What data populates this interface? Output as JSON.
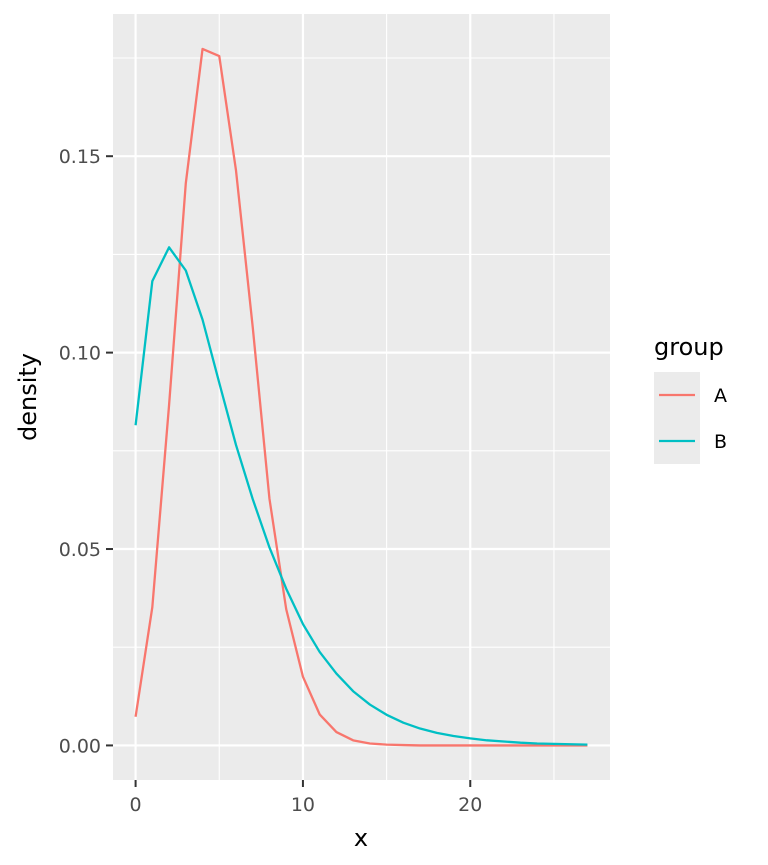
{
  "chart_data": {
    "type": "line",
    "title": "",
    "xlabel": "x",
    "ylabel": "density",
    "xlim": [
      -1.35,
      28.35
    ],
    "ylim": [
      -0.0088,
      0.1862
    ],
    "x_ticks": [
      0,
      10,
      20
    ],
    "x_tick_labels": [
      "0",
      "10",
      "20"
    ],
    "y_ticks": [
      0.0,
      0.05,
      0.1,
      0.15
    ],
    "y_tick_labels": [
      "0.00",
      "0.05",
      "0.10",
      "0.15"
    ],
    "grid": true,
    "legend": {
      "title": "group",
      "position": "right"
    },
    "series": [
      {
        "name": "A",
        "color": "#F8766D",
        "x": [
          0,
          1,
          2,
          3,
          4,
          5,
          6,
          7,
          8,
          9,
          10,
          11,
          12,
          13,
          14,
          15,
          16,
          17,
          18,
          19,
          20,
          21,
          22,
          23,
          24,
          25,
          26,
          27
        ],
        "y": [
          0.0073,
          0.0352,
          0.0866,
          0.1431,
          0.1773,
          0.1755,
          0.1464,
          0.1065,
          0.0628,
          0.0347,
          0.0175,
          0.0079,
          0.0034,
          0.0013,
          0.0005,
          0.0002,
          0.0001,
          0.0,
          0.0,
          0.0,
          0.0,
          0.0,
          0.0,
          0.0,
          0.0,
          0.0,
          0.0,
          0.0
        ]
      },
      {
        "name": "B",
        "color": "#00BFC4",
        "x": [
          0,
          1,
          2,
          3,
          4,
          5,
          6,
          7,
          8,
          9,
          10,
          11,
          12,
          13,
          14,
          15,
          16,
          17,
          18,
          19,
          20,
          21,
          22,
          23,
          24,
          25,
          26,
          27
        ],
        "y": [
          0.0815,
          0.1182,
          0.1268,
          0.1209,
          0.1084,
          0.0923,
          0.0765,
          0.0627,
          0.0504,
          0.0399,
          0.0309,
          0.0238,
          0.0183,
          0.0138,
          0.0104,
          0.0078,
          0.0058,
          0.0043,
          0.0032,
          0.0024,
          0.0018,
          0.0013,
          0.001,
          0.0007,
          0.0005,
          0.0004,
          0.0003,
          0.0002
        ]
      }
    ]
  }
}
